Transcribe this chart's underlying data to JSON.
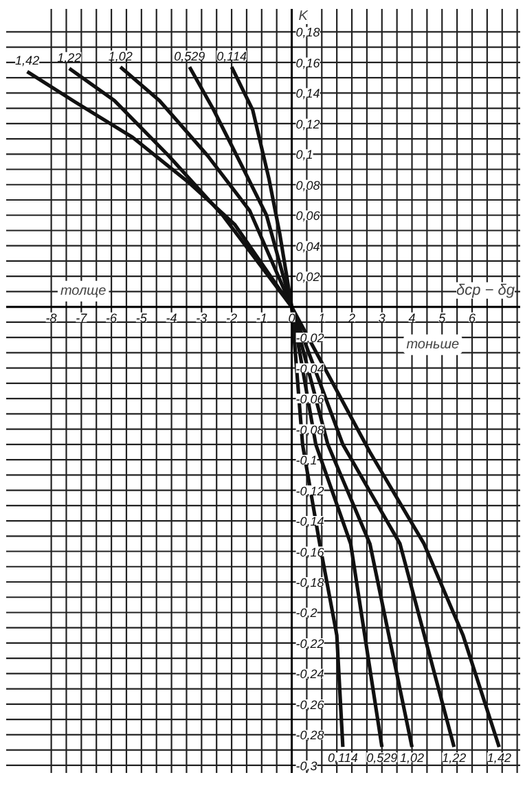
{
  "chart_data": {
    "type": "line",
    "xlabel": "δср − δg",
    "ylabel": "K",
    "xlim": [
      -9.5,
      7.6
    ],
    "ylim": [
      -0.305,
      0.195
    ],
    "xticks": [
      -8,
      {
        "value": -7.5,
        "label": null
      },
      -7,
      {
        "value": -6.5,
        "label": null
      },
      -6,
      {
        "value": -5.5,
        "label": null
      },
      -5,
      {
        "value": -4.5,
        "label": null
      },
      -4,
      {
        "value": -3.5,
        "label": null
      },
      -3,
      {
        "value": -2.5,
        "label": null
      },
      -2,
      {
        "value": -1.5,
        "label": null
      },
      -1,
      {
        "value": -0.5,
        "label": null
      },
      0,
      {
        "value": 0.5,
        "label": null
      },
      1,
      {
        "value": 1.5,
        "label": null
      },
      2,
      {
        "value": 2.5,
        "label": null
      },
      3,
      {
        "value": 3.5,
        "label": null
      },
      4,
      {
        "value": 4.5,
        "label": null
      },
      5,
      {
        "value": 5.5,
        "label": null
      },
      6,
      {
        "value": 6.5,
        "label": null
      },
      {
        "value": 7,
        "label": null
      },
      {
        "value": 7.5,
        "label": null
      }
    ],
    "yticks": [
      {
        "value": 0.18,
        "label": "0,18"
      },
      {
        "value": 0.17,
        "label": null
      },
      {
        "value": 0.16,
        "label": "0,16"
      },
      {
        "value": 0.15,
        "label": null
      },
      {
        "value": 0.14,
        "label": "0,14"
      },
      {
        "value": 0.13,
        "label": null
      },
      {
        "value": 0.12,
        "label": "0,12"
      },
      {
        "value": 0.11,
        "label": null
      },
      {
        "value": 0.1,
        "label": "0,1"
      },
      {
        "value": 0.09,
        "label": null
      },
      {
        "value": 0.08,
        "label": "0,08"
      },
      {
        "value": 0.07,
        "label": null
      },
      {
        "value": 0.06,
        "label": "0,06"
      },
      {
        "value": 0.05,
        "label": null
      },
      {
        "value": 0.04,
        "label": "0,04"
      },
      {
        "value": 0.03,
        "label": null
      },
      {
        "value": 0.02,
        "label": "0,02"
      },
      {
        "value": 0.01,
        "label": null
      },
      {
        "value": 0,
        "label": null
      },
      {
        "value": -0.01,
        "label": null
      },
      {
        "value": -0.02,
        "label": "-0,02"
      },
      {
        "value": -0.03,
        "label": null
      },
      {
        "value": -0.04,
        "label": "-0,04"
      },
      {
        "value": -0.05,
        "label": null
      },
      {
        "value": -0.06,
        "label": "-0,06"
      },
      {
        "value": -0.07,
        "label": null
      },
      {
        "value": -0.08,
        "label": "-0,08"
      },
      {
        "value": -0.09,
        "label": null
      },
      {
        "value": -0.1,
        "label": "-0,1"
      },
      {
        "value": -0.11,
        "label": null
      },
      {
        "value": -0.12,
        "label": "-0,12"
      },
      {
        "value": -0.13,
        "label": null
      },
      {
        "value": -0.14,
        "label": "-0,14"
      },
      {
        "value": -0.15,
        "label": null
      },
      {
        "value": -0.16,
        "label": "-0,16"
      },
      {
        "value": -0.17,
        "label": null
      },
      {
        "value": -0.18,
        "label": "-0,18"
      },
      {
        "value": -0.19,
        "label": null
      },
      {
        "value": -0.2,
        "label": "-0,2"
      },
      {
        "value": -0.21,
        "label": null
      },
      {
        "value": -0.22,
        "label": "-0,22"
      },
      {
        "value": -0.23,
        "label": null
      },
      {
        "value": -0.24,
        "label": "-0,24"
      },
      {
        "value": -0.25,
        "label": null
      },
      {
        "value": -0.26,
        "label": "-0,26"
      },
      {
        "value": -0.27,
        "label": null
      },
      {
        "value": -0.28,
        "label": "-0,28"
      },
      {
        "value": -0.29,
        "label": null
      },
      {
        "value": -0.3,
        "label": "-0,3"
      }
    ],
    "grid": true,
    "series": [
      {
        "name": "1,42",
        "color": "#111111",
        "x": [
          -8.8,
          -7.2,
          -5.3,
          -3.4,
          -1.9,
          0,
          2.6,
          4.4,
          5.7,
          6.9
        ],
        "values": [
          0.154,
          0.134,
          0.111,
          0.081,
          0.054,
          0,
          -0.095,
          -0.155,
          -0.215,
          -0.288
        ]
      },
      {
        "name": "1,22",
        "color": "#111111",
        "x": [
          -7.4,
          -5.9,
          -4.1,
          -2.3,
          0,
          1.7,
          3.6,
          5.4
        ],
        "values": [
          0.156,
          0.135,
          0.099,
          0.06,
          0,
          -0.09,
          -0.155,
          -0.288
        ]
      },
      {
        "name": "1,02",
        "color": "#111111",
        "x": [
          -5.7,
          -4.4,
          -2.8,
          -1.4,
          0,
          1.2,
          2.6,
          4.0
        ],
        "values": [
          0.157,
          0.135,
          0.099,
          0.063,
          0,
          -0.09,
          -0.155,
          -0.288
        ]
      },
      {
        "name": "0,529",
        "color": "#111111",
        "x": [
          -3.4,
          -2.6,
          -1.6,
          -0.84,
          0,
          0.8,
          1.96,
          3.0
        ],
        "values": [
          0.157,
          0.129,
          0.09,
          0.06,
          0,
          -0.09,
          -0.155,
          -0.288
        ]
      },
      {
        "name": "0,114",
        "color": "#111111",
        "x": [
          -2.0,
          -1.3,
          -0.76,
          -0.4,
          0,
          0.36,
          0.93,
          1.5,
          1.7
        ],
        "values": [
          0.157,
          0.129,
          0.084,
          0.048,
          0,
          -0.09,
          -0.155,
          -0.215,
          -0.288
        ]
      }
    ],
    "annotations": [
      "толще",
      "тоньше"
    ]
  }
}
